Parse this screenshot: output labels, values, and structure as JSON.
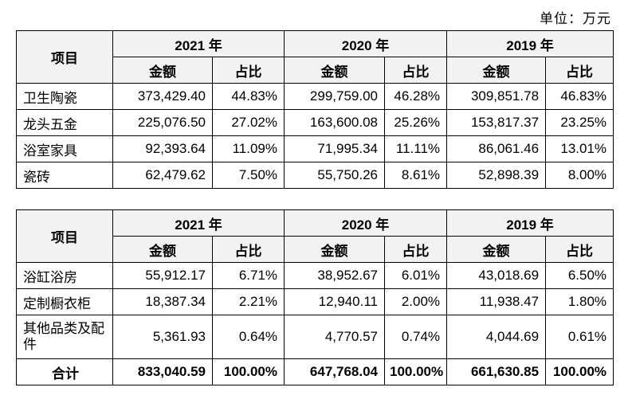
{
  "unit_label": "单位：万元",
  "headers": {
    "item": "项目",
    "years": [
      "2021 年",
      "2020 年",
      "2019 年"
    ],
    "amount": "金额",
    "ratio": "占比"
  },
  "table1": {
    "rows": [
      {
        "name": "卫生陶瓷",
        "values": [
          "373,429.40",
          "44.83%",
          "299,759.00",
          "46.28%",
          "309,851.78",
          "46.83%"
        ]
      },
      {
        "name": "龙头五金",
        "values": [
          "225,076.50",
          "27.02%",
          "163,600.08",
          "25.26%",
          "153,817.37",
          "23.25%"
        ]
      },
      {
        "name": "浴室家具",
        "values": [
          "92,393.64",
          "11.09%",
          "71,995.34",
          "11.11%",
          "86,061.46",
          "13.01%"
        ]
      },
      {
        "name": "瓷砖",
        "values": [
          "62,479.62",
          "7.50%",
          "55,750.26",
          "8.61%",
          "52,898.39",
          "8.00%"
        ]
      }
    ]
  },
  "table2": {
    "rows": [
      {
        "name": "浴缸浴房",
        "values": [
          "55,912.17",
          "6.71%",
          "38,952.67",
          "6.01%",
          "43,018.69",
          "6.50%"
        ]
      },
      {
        "name": "定制橱衣柜",
        "values": [
          "18,387.34",
          "2.21%",
          "12,940.11",
          "2.00%",
          "11,938.47",
          "1.80%"
        ]
      },
      {
        "name": "其他品类及配件",
        "values": [
          "5,361.93",
          "0.64%",
          "4,770.57",
          "0.74%",
          "4,044.69",
          "0.61%"
        ]
      },
      {
        "name": "合计",
        "values": [
          "833,040.59",
          "100.00%",
          "647,768.04",
          "100.00%",
          "661,630.85",
          "100.00%"
        ]
      }
    ]
  }
}
